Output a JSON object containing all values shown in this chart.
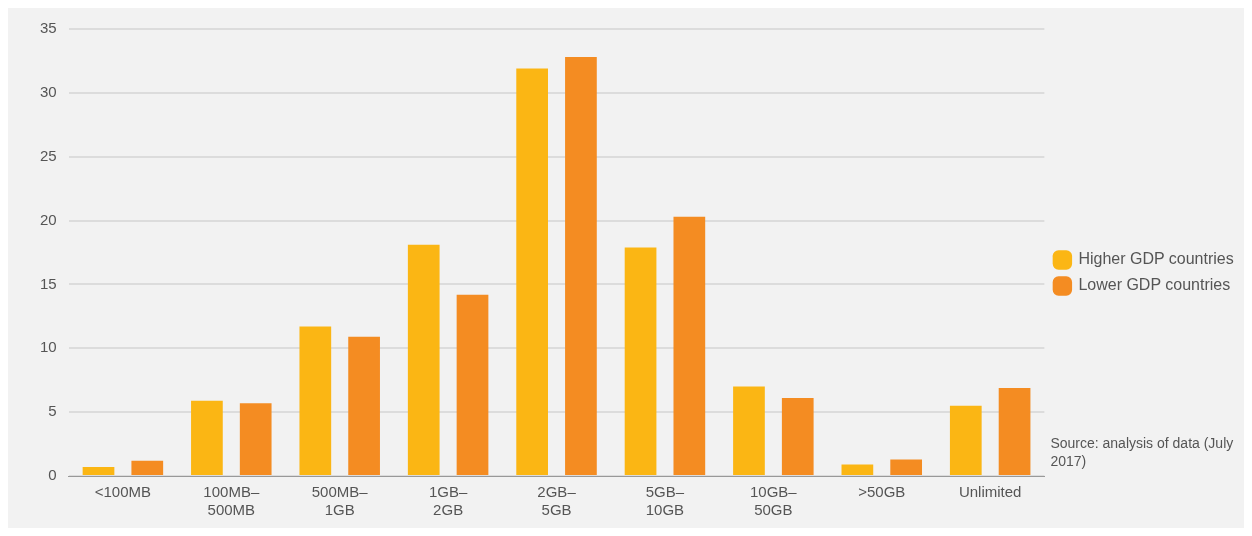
{
  "chart_data": {
    "type": "bar",
    "categories": [
      "<100MB",
      "100MB–500MB",
      "500MB–1GB",
      "1GB–2GB",
      "2GB–5GB",
      "5GB–10GB",
      "10GB–50GB",
      ">50GB",
      "Unlimited"
    ],
    "series": [
      {
        "name": "Higher GDP countries",
        "color": "#fbb614",
        "values": [
          0.7,
          5.9,
          11.7,
          18.1,
          31.9,
          17.9,
          7.0,
          0.9,
          5.5
        ]
      },
      {
        "name": "Lower GDP countries",
        "color": "#f48c22",
        "values": [
          1.2,
          5.7,
          10.9,
          14.2,
          32.8,
          20.3,
          6.1,
          1.3,
          6.9
        ]
      }
    ],
    "ylim": [
      0,
      35
    ],
    "yticks": [
      0,
      5,
      10,
      15,
      20,
      25,
      30,
      35
    ],
    "grid": "y",
    "legend": "right",
    "annotations": [
      "Source: analysis of data (July 2017)"
    ]
  }
}
